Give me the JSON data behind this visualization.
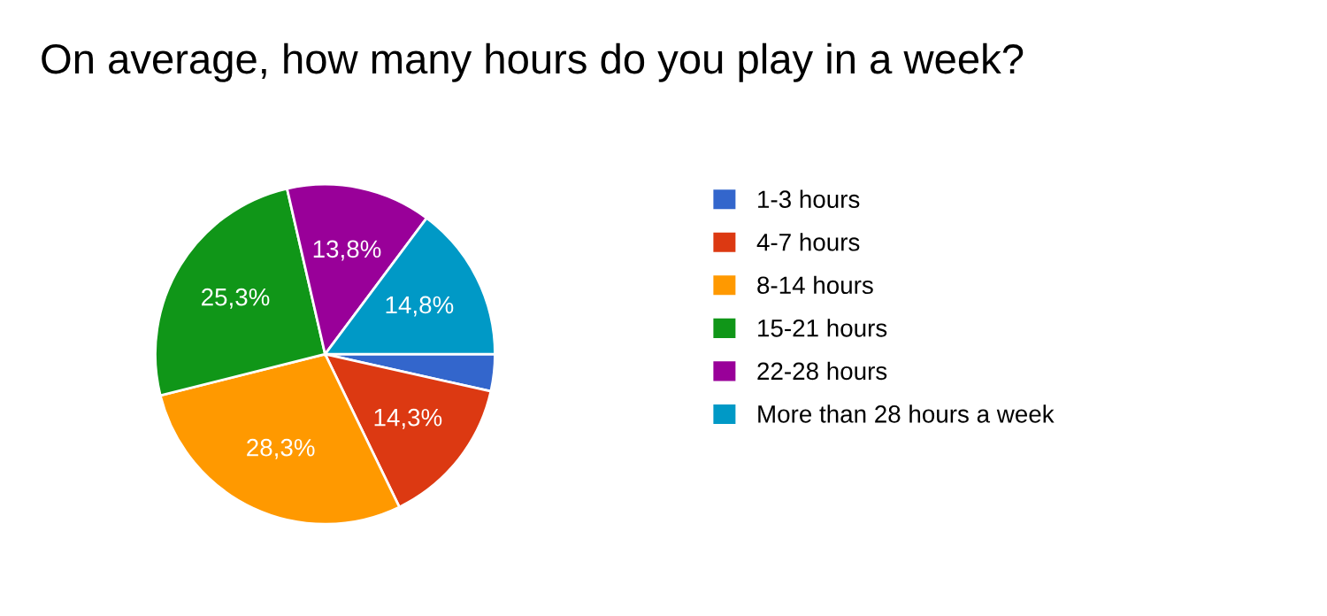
{
  "chart_data": {
    "type": "pie",
    "title": "On average, how many hours do you play in a week?",
    "categories": [
      "1-3 hours",
      "4-7 hours",
      "8-14 hours",
      "15-21 hours",
      "22-28 hours",
      "More than 28 hours a week"
    ],
    "values": [
      3.5,
      14.3,
      28.3,
      25.3,
      13.8,
      14.8
    ],
    "value_labels": [
      null,
      "14,3%",
      "28,3%",
      "25,3%",
      "13,8%",
      "14,8%"
    ],
    "colors": [
      "#3366cc",
      "#dc3912",
      "#ff9900",
      "#109618",
      "#990099",
      "#0099c6"
    ],
    "legend": "right"
  }
}
